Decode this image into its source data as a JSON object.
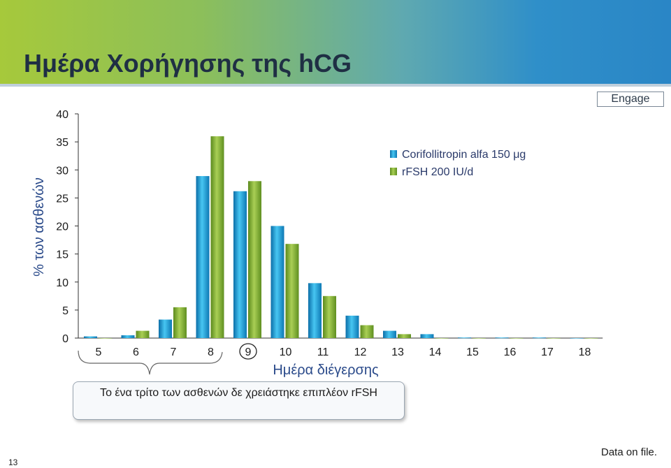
{
  "header": {
    "title": "Ημέρα Χορήγησης της hCG"
  },
  "badge": "Engage",
  "chart_data": {
    "type": "bar",
    "title": "",
    "xlabel": "Ημέρα διέγερσης",
    "ylabel": "% των ασθενών",
    "ylim": [
      0,
      40
    ],
    "yticks": [
      0,
      5,
      10,
      15,
      20,
      25,
      30,
      35,
      40
    ],
    "categories": [
      "5",
      "6",
      "7",
      "8",
      "9",
      "10",
      "11",
      "12",
      "13",
      "14",
      "15",
      "16",
      "17",
      "18"
    ],
    "highlighted_category": "9",
    "series": [
      {
        "name": "Corifollitropin alfa 150 μg",
        "values": [
          0.3,
          0.5,
          3.3,
          28.9,
          26.2,
          20.0,
          9.8,
          4.0,
          1.3,
          0.7,
          0.1,
          0.1,
          0.1,
          0.0
        ],
        "color": "#1e9fd6"
      },
      {
        "name": "rFSH 200 IU/d",
        "values": [
          0.0,
          1.3,
          5.5,
          36.0,
          28.0,
          16.8,
          7.5,
          2.3,
          0.7,
          0.0,
          0.0,
          0.0,
          0.0,
          0.0
        ],
        "color": "#86b33a"
      }
    ],
    "legend_position": "top-right",
    "grid": false
  },
  "callout": {
    "text": "Το ένα τρίτο των ασθενών δε χρειάστηκε επιπλέον rFSH"
  },
  "footer": {
    "slide_number": "13",
    "note": "Data on file."
  }
}
